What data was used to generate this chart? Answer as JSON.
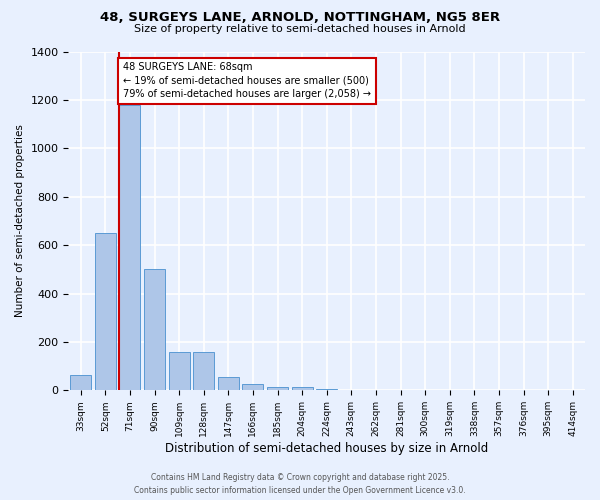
{
  "title_line1": "48, SURGEYS LANE, ARNOLD, NOTTINGHAM, NG5 8ER",
  "title_line2": "Size of property relative to semi-detached houses in Arnold",
  "xlabel": "Distribution of semi-detached houses by size in Arnold",
  "ylabel": "Number of semi-detached properties",
  "bar_labels": [
    "33sqm",
    "52sqm",
    "71sqm",
    "90sqm",
    "109sqm",
    "128sqm",
    "147sqm",
    "166sqm",
    "185sqm",
    "204sqm",
    "224sqm",
    "243sqm",
    "262sqm",
    "281sqm",
    "300sqm",
    "319sqm",
    "338sqm",
    "357sqm",
    "376sqm",
    "395sqm",
    "414sqm"
  ],
  "bar_values": [
    65,
    650,
    1180,
    500,
    160,
    160,
    55,
    25,
    15,
    15,
    5,
    0,
    0,
    0,
    0,
    0,
    0,
    0,
    0,
    0,
    0
  ],
  "bar_color": "#aec6e8",
  "bar_edge_color": "#5b9bd5",
  "background_color": "#e8f0fe",
  "grid_color": "#ffffff",
  "annotation_title": "48 SURGEYS LANE: 68sqm",
  "annotation_line2": "← 19% of semi-detached houses are smaller (500)",
  "annotation_line3": "79% of semi-detached houses are larger (2,058) →",
  "annotation_box_color": "#ffffff",
  "annotation_box_edge": "#cc0000",
  "red_line_color": "#cc0000",
  "ylim": [
    0,
    1400
  ],
  "yticks": [
    0,
    200,
    400,
    600,
    800,
    1000,
    1200,
    1400
  ],
  "footer_line1": "Contains HM Land Registry data © Crown copyright and database right 2025.",
  "footer_line2": "Contains public sector information licensed under the Open Government Licence v3.0."
}
